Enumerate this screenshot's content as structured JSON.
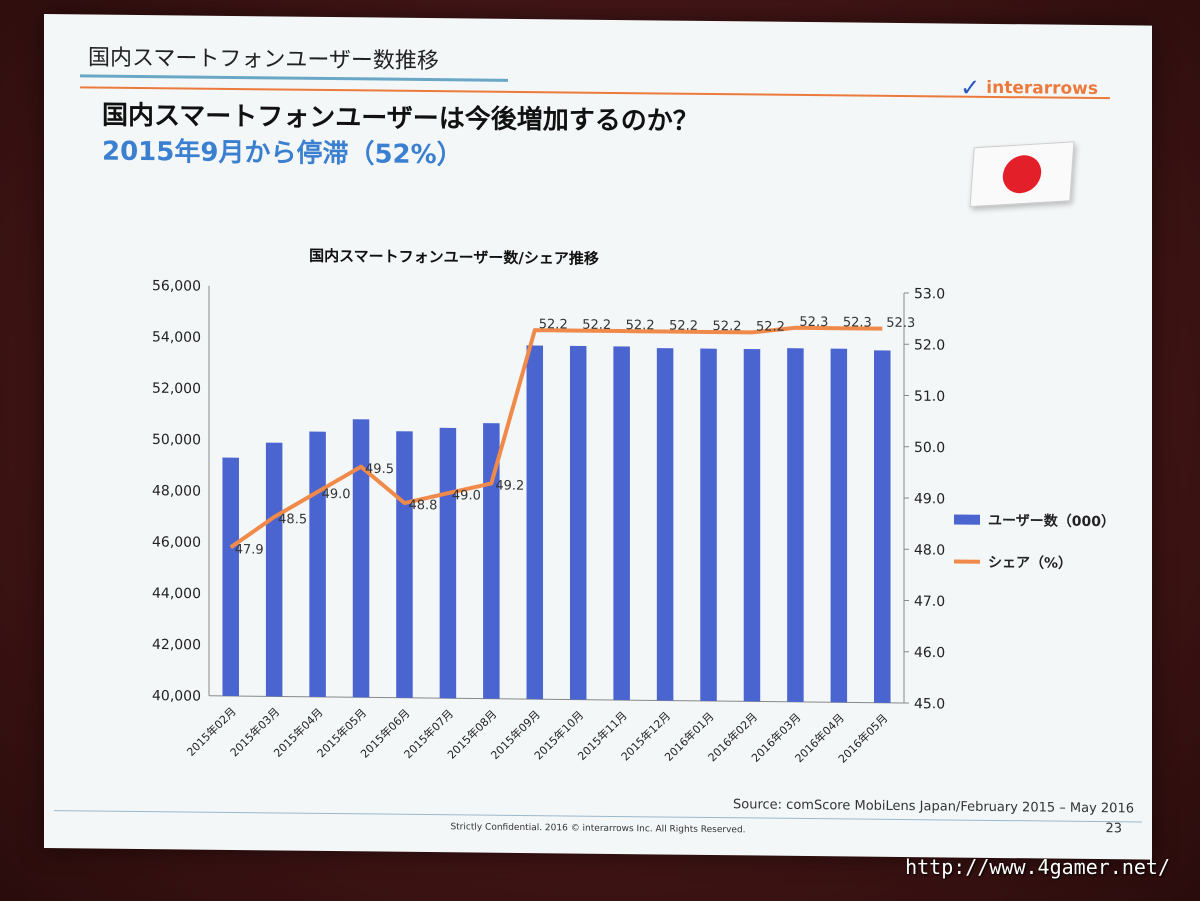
{
  "slide": {
    "section_title": "国内スマートフォンユーザー数推移",
    "logo_text": "interarrows",
    "headline": "国内スマートフォンユーザーは今後増加するのか？",
    "subheadline": "2015年9月から停滞（52%）",
    "source": "Source: comScore MobiLens Japan/February 2015 – May 2016",
    "footer": "Strictly Confidential. 2016 © interarrows Inc. All Rights Reserved.",
    "page_number": "23"
  },
  "watermark": "http://www.4gamer.net/",
  "chart_data": {
    "type": "bar",
    "title": "国内スマートフォンユーザー数/シェア推移",
    "categories": [
      "2015年02月",
      "2015年03月",
      "2015年04月",
      "2015年05月",
      "2015年06月",
      "2015年07月",
      "2015年08月",
      "2015年09月",
      "2015年10月",
      "2015年11月",
      "2015年12月",
      "2016年01月",
      "2016年02月",
      "2016年03月",
      "2016年04月",
      "2016年05月"
    ],
    "series": [
      {
        "name": "ユーザー数（000）",
        "type": "bar",
        "axis": "left",
        "color": "#4a64d0",
        "values": [
          49300,
          49900,
          50350,
          50850,
          50400,
          50550,
          50750,
          53800,
          53800,
          53800,
          53750,
          53750,
          53750,
          53800,
          53800,
          53750
        ]
      },
      {
        "name": "シェア（%）",
        "type": "line",
        "axis": "right",
        "color": "#f08a4a",
        "values": [
          47.9,
          48.5,
          49.0,
          49.5,
          48.8,
          49.0,
          49.2,
          52.2,
          52.2,
          52.2,
          52.2,
          52.2,
          52.2,
          52.3,
          52.3,
          52.3
        ],
        "labels": [
          "47.9",
          "48.5",
          "49.0",
          "49.5",
          "48.8",
          "49.0",
          "49.2",
          "52.2",
          "52.2",
          "52.2",
          "52.2",
          "52.2",
          "52.2",
          "52.3",
          "52.3",
          "52.3"
        ]
      }
    ],
    "y_left": {
      "min": 40000,
      "max": 56000,
      "ticks": [
        "40,000",
        "42,000",
        "44,000",
        "46,000",
        "48,000",
        "50,000",
        "52,000",
        "54,000",
        "56,000"
      ]
    },
    "y_right": {
      "min": 45.0,
      "max": 53.0,
      "ticks": [
        "45.0",
        "46.0",
        "47.0",
        "48.0",
        "49.0",
        "50.0",
        "51.0",
        "52.0",
        "53.0"
      ]
    },
    "grid": false,
    "legend_position": "right"
  },
  "colors": {
    "bar": "#4a64d0",
    "line": "#f08a4a",
    "accent_orange": "#ec7a3c",
    "accent_blue": "#3a7fd0"
  }
}
